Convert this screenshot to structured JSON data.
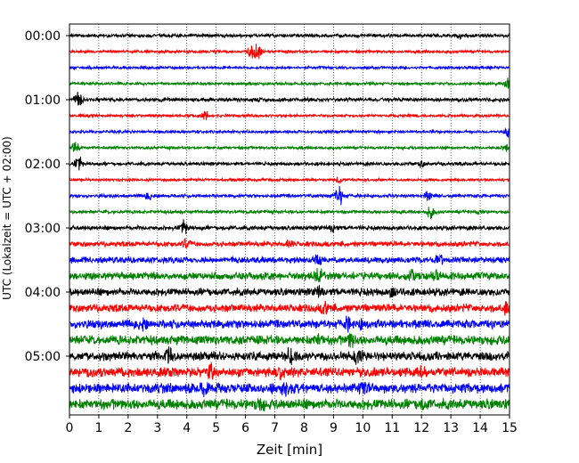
{
  "chart_data": {
    "type": "line",
    "title": "",
    "xlabel": "Zeit  [min]",
    "ylabel": "UTC (Lokalzeit = UTC + 02:00)",
    "xlim": [
      0,
      15
    ],
    "x_ticks": [
      "0",
      "1",
      "2",
      "3",
      "4",
      "5",
      "6",
      "7",
      "8",
      "9",
      "10",
      "11",
      "12",
      "13",
      "14",
      "15"
    ],
    "y_tick_labels": [
      "00:00",
      "01:00",
      "02:00",
      "03:00",
      "04:00",
      "05:00"
    ],
    "trace_interval_min": 15,
    "grid": "vertical dotted lines at every minute",
    "color_cycle": [
      "#000000",
      "#ff0000",
      "#0000ff",
      "#008000"
    ],
    "series": [
      {
        "start": "00:00",
        "color": "#000000",
        "base_amplitude": 0.7,
        "events": [
          {
            "minute": 13.3,
            "strength": 1.2
          }
        ]
      },
      {
        "start": "00:15",
        "color": "#ff0000",
        "base_amplitude": 0.6,
        "events": [
          {
            "minute": 6.2,
            "strength": 4.5
          },
          {
            "minute": 6.4,
            "strength": 7
          }
        ]
      },
      {
        "start": "00:30",
        "color": "#0000ff",
        "base_amplitude": 0.6,
        "events": []
      },
      {
        "start": "00:45",
        "color": "#008000",
        "base_amplitude": 0.6,
        "events": [
          {
            "minute": 14.95,
            "strength": 3
          }
        ]
      },
      {
        "start": "01:00",
        "color": "#000000",
        "base_amplitude": 0.8,
        "events": [
          {
            "minute": 0.3,
            "strength": 5
          }
        ]
      },
      {
        "start": "01:15",
        "color": "#ff0000",
        "base_amplitude": 0.6,
        "events": [
          {
            "minute": 4.6,
            "strength": 3
          }
        ]
      },
      {
        "start": "01:30",
        "color": "#0000ff",
        "base_amplitude": 0.6,
        "events": [
          {
            "minute": 14.95,
            "strength": 2.5
          }
        ]
      },
      {
        "start": "01:45",
        "color": "#008000",
        "base_amplitude": 0.6,
        "events": [
          {
            "minute": 0.2,
            "strength": 3.5
          },
          {
            "minute": 14.9,
            "strength": 3
          }
        ]
      },
      {
        "start": "02:00",
        "color": "#000000",
        "base_amplitude": 0.7,
        "events": [
          {
            "minute": 0.3,
            "strength": 5
          },
          {
            "minute": 12.0,
            "strength": 1.5
          }
        ]
      },
      {
        "start": "02:15",
        "color": "#ff0000",
        "base_amplitude": 0.6,
        "events": [
          {
            "minute": 9.2,
            "strength": 2
          }
        ]
      },
      {
        "start": "02:30",
        "color": "#0000ff",
        "base_amplitude": 0.7,
        "events": [
          {
            "minute": 2.7,
            "strength": 2
          },
          {
            "minute": 9.2,
            "strength": 6
          },
          {
            "minute": 12.2,
            "strength": 2.5
          }
        ]
      },
      {
        "start": "02:45",
        "color": "#008000",
        "base_amplitude": 0.7,
        "events": [
          {
            "minute": 12.3,
            "strength": 4
          },
          {
            "minute": 14.0,
            "strength": 1.5
          }
        ]
      },
      {
        "start": "03:00",
        "color": "#000000",
        "base_amplitude": 0.9,
        "events": [
          {
            "minute": 3.9,
            "strength": 4
          },
          {
            "minute": 9.0,
            "strength": 2
          }
        ]
      },
      {
        "start": "03:15",
        "color": "#ff0000",
        "base_amplitude": 1.1,
        "events": [
          {
            "minute": 4.0,
            "strength": 2.5
          },
          {
            "minute": 7.5,
            "strength": 2
          }
        ]
      },
      {
        "start": "03:30",
        "color": "#0000ff",
        "base_amplitude": 1.3,
        "events": [
          {
            "minute": 8.5,
            "strength": 3
          },
          {
            "minute": 12.6,
            "strength": 3
          }
        ]
      },
      {
        "start": "03:45",
        "color": "#008000",
        "base_amplitude": 1.6,
        "events": [
          {
            "minute": 8.5,
            "strength": 4
          },
          {
            "minute": 11.7,
            "strength": 3.5
          },
          {
            "minute": 12.5,
            "strength": 3.5
          }
        ]
      },
      {
        "start": "04:00",
        "color": "#000000",
        "base_amplitude": 1.6,
        "events": [
          {
            "minute": 8.5,
            "strength": 2.5
          },
          {
            "minute": 11.0,
            "strength": 2
          }
        ]
      },
      {
        "start": "04:15",
        "color": "#ff0000",
        "base_amplitude": 1.7,
        "events": [
          {
            "minute": 8.7,
            "strength": 3
          },
          {
            "minute": 14.9,
            "strength": 2
          }
        ]
      },
      {
        "start": "04:30",
        "color": "#0000ff",
        "base_amplitude": 1.8,
        "events": [
          {
            "minute": 2.5,
            "strength": 2.5
          },
          {
            "minute": 9.5,
            "strength": 2.5
          },
          {
            "minute": 10.0,
            "strength": 2.5
          }
        ]
      },
      {
        "start": "04:45",
        "color": "#008000",
        "base_amplitude": 2.0,
        "events": [
          {
            "minute": 8.5,
            "strength": 3
          },
          {
            "minute": 9.6,
            "strength": 3.5
          }
        ]
      },
      {
        "start": "05:00",
        "color": "#000000",
        "base_amplitude": 1.9,
        "events": [
          {
            "minute": 3.4,
            "strength": 3
          },
          {
            "minute": 7.5,
            "strength": 3.5
          },
          {
            "minute": 9.8,
            "strength": 2.5
          }
        ]
      },
      {
        "start": "05:15",
        "color": "#ff0000",
        "base_amplitude": 2.0,
        "events": [
          {
            "minute": 4.8,
            "strength": 4
          },
          {
            "minute": 7.2,
            "strength": 2
          },
          {
            "minute": 12.0,
            "strength": 3
          }
        ]
      },
      {
        "start": "05:30",
        "color": "#0000ff",
        "base_amplitude": 2.1,
        "events": [
          {
            "minute": 4.6,
            "strength": 3
          },
          {
            "minute": 7.3,
            "strength": 3.5
          },
          {
            "minute": 10.0,
            "strength": 3
          }
        ]
      },
      {
        "start": "05:45",
        "color": "#008000",
        "base_amplitude": 2.2,
        "events": [
          {
            "minute": 6.5,
            "strength": 4
          },
          {
            "minute": 12.1,
            "strength": 3
          }
        ]
      }
    ]
  }
}
